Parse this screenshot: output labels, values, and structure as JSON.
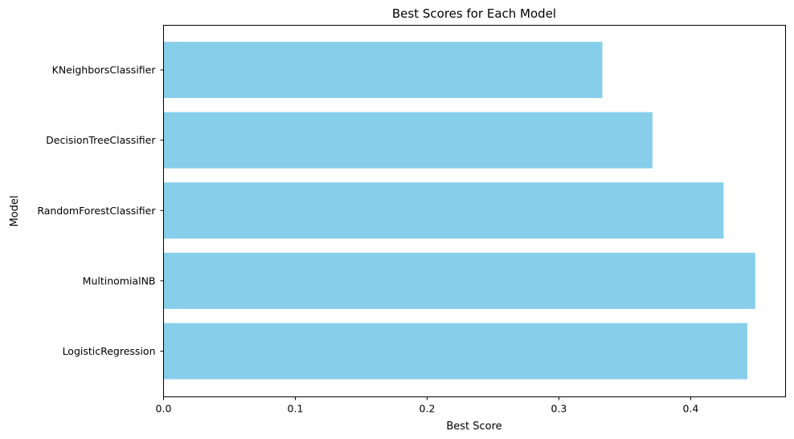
{
  "chart_data": {
    "type": "bar",
    "orientation": "horizontal",
    "title": "Best Scores for Each Model",
    "xlabel": "Best Score",
    "ylabel": "Model",
    "categories": [
      "LogisticRegression",
      "MultinomialNB",
      "RandomForestClassifier",
      "DecisionTreeClassifier",
      "KNeighborsClassifier"
    ],
    "values": [
      0.443,
      0.449,
      0.425,
      0.371,
      0.333
    ],
    "xlim": [
      0,
      0.472
    ],
    "xticks": [
      0.0,
      0.1,
      0.2,
      0.3,
      0.4
    ],
    "xtick_labels": [
      "0.0",
      "0.1",
      "0.2",
      "0.3",
      "0.4"
    ],
    "bar_color": "#87CEEB",
    "grid": false,
    "legend": "none"
  }
}
